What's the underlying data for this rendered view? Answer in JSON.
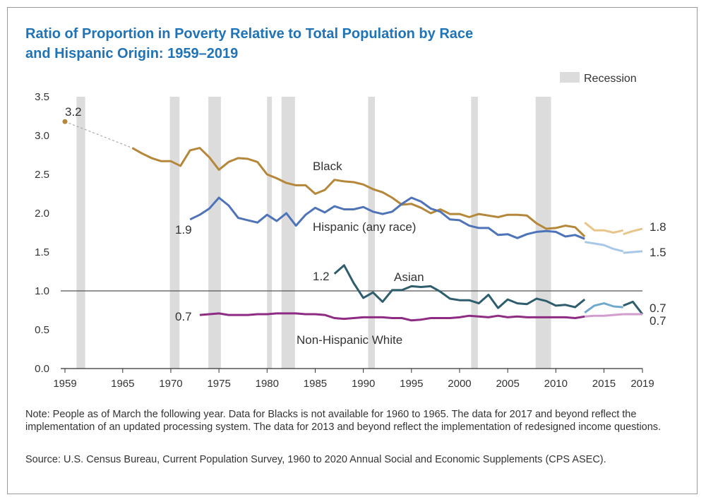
{
  "chart_data": {
    "type": "line",
    "title_line1": "Ratio of Proportion in Poverty Relative to Total Population by Race",
    "title_line2": "and Hispanic Origin: 1959–2019",
    "legend_recession": "Recession",
    "legend_placement": "top-right",
    "ylim": [
      0,
      3.5
    ],
    "xlim": [
      1959,
      2019
    ],
    "y_ticks": [
      "0.0",
      "0.5",
      "1.0",
      "1.5",
      "2.0",
      "2.5",
      "3.0",
      "3.5"
    ],
    "x_ticks": [
      "1959",
      "1965",
      "1970",
      "1975",
      "1980",
      "1985",
      "1990",
      "1995",
      "2000",
      "2005",
      "2010",
      "2015",
      "2019"
    ],
    "recessions": [
      [
        1960.2,
        1961.1
      ],
      [
        1969.9,
        1970.9
      ],
      [
        1973.9,
        1975.2
      ],
      [
        1980.0,
        1980.5
      ],
      [
        1981.5,
        1982.9
      ],
      [
        1990.5,
        1991.2
      ],
      [
        2001.2,
        2001.9
      ],
      [
        2007.9,
        2009.5
      ]
    ],
    "colors": {
      "black": "#b5873a",
      "black_light": "#e8c58b",
      "hispanic": "#4e73b8",
      "hispanic_light": "#a8c8e8",
      "asian": "#2e5e6e",
      "asian_light": "#6fa9cc",
      "white": "#8e2b82",
      "white_light": "#d29ccf",
      "title": "#1f73b7",
      "recession": "#dcdcdc"
    },
    "series": [
      {
        "name": "Black",
        "label": "Black",
        "start_label": "3.2",
        "end_label": "1.8",
        "point_1959": [
          1959,
          3.18
        ],
        "segment_1": {
          "x": [
            1966,
            1967,
            1968,
            1969,
            1970,
            1971,
            1972,
            1973,
            1974,
            1975,
            1976,
            1977,
            1978,
            1979,
            1980,
            1981,
            1982,
            1983,
            1984,
            1985,
            1986,
            1987,
            1988,
            1989,
            1990,
            1991,
            1992,
            1993,
            1994,
            1995,
            1996,
            1997,
            1998,
            1999,
            2000,
            2001,
            2002,
            2003,
            2004,
            2005,
            2006,
            2007,
            2008,
            2009,
            2010,
            2011,
            2012,
            2013
          ],
          "y": [
            2.84,
            2.77,
            2.71,
            2.67,
            2.67,
            2.61,
            2.81,
            2.84,
            2.72,
            2.56,
            2.66,
            2.71,
            2.7,
            2.66,
            2.5,
            2.45,
            2.39,
            2.36,
            2.36,
            2.25,
            2.3,
            2.43,
            2.41,
            2.4,
            2.37,
            2.31,
            2.27,
            2.2,
            2.11,
            2.12,
            2.07,
            2.0,
            2.05,
            1.99,
            1.99,
            1.95,
            1.99,
            1.97,
            1.95,
            1.98,
            1.98,
            1.97,
            1.87,
            1.8,
            1.81,
            1.84,
            1.82,
            1.7
          ]
        },
        "segment_2": {
          "x": [
            2013,
            2014,
            2015,
            2016,
            2017
          ],
          "y": [
            1.88,
            1.78,
            1.78,
            1.75,
            1.78
          ]
        },
        "segment_3": {
          "x": [
            2017,
            2018,
            2019
          ],
          "y": [
            1.73,
            1.77,
            1.8
          ]
        }
      },
      {
        "name": "Hispanic (any race)",
        "label": "Hispanic (any race)",
        "start_label": "1.9",
        "end_label": "1.5",
        "segment_1": {
          "x": [
            1972,
            1973,
            1974,
            1975,
            1976,
            1977,
            1978,
            1979,
            1980,
            1981,
            1982,
            1983,
            1984,
            1985,
            1986,
            1987,
            1988,
            1989,
            1990,
            1991,
            1992,
            1993,
            1994,
            1995,
            1996,
            1997,
            1998,
            1999,
            2000,
            2001,
            2002,
            2003,
            2004,
            2005,
            2006,
            2007,
            2008,
            2009,
            2010,
            2011,
            2012,
            2013
          ],
          "y": [
            1.92,
            1.98,
            2.06,
            2.2,
            2.1,
            1.94,
            1.91,
            1.88,
            1.98,
            1.9,
            2.0,
            1.84,
            1.98,
            2.07,
            2.01,
            2.09,
            2.05,
            2.05,
            2.08,
            2.02,
            1.99,
            2.02,
            2.12,
            2.2,
            2.15,
            2.06,
            2.02,
            1.92,
            1.91,
            1.84,
            1.81,
            1.81,
            1.72,
            1.73,
            1.68,
            1.73,
            1.76,
            1.77,
            1.76,
            1.7,
            1.72,
            1.67
          ]
        },
        "segment_2": {
          "x": [
            2013,
            2014,
            2015,
            2016,
            2017
          ],
          "y": [
            1.63,
            1.61,
            1.59,
            1.54,
            1.51
          ]
        },
        "segment_3": {
          "x": [
            2017,
            2018,
            2019
          ],
          "y": [
            1.49,
            1.5,
            1.51
          ]
        }
      },
      {
        "name": "Asian",
        "label": "Asian",
        "start_label": "1.2",
        "end_label": "0.7",
        "segment_1": {
          "x": [
            1987,
            1988,
            1989,
            1990,
            1991,
            1992,
            1993,
            1994,
            1995,
            1996,
            1997,
            1998,
            1999,
            2000,
            2001,
            2002,
            2003,
            2004,
            2005,
            2006,
            2007,
            2008,
            2009,
            2010,
            2011,
            2012,
            2013
          ],
          "y": [
            1.22,
            1.33,
            1.1,
            0.91,
            0.98,
            0.86,
            1.01,
            1.01,
            1.06,
            1.05,
            1.06,
            0.99,
            0.9,
            0.88,
            0.88,
            0.84,
            0.95,
            0.78,
            0.89,
            0.84,
            0.83,
            0.9,
            0.87,
            0.81,
            0.82,
            0.79,
            0.89
          ]
        },
        "segment_2": {
          "x": [
            2013,
            2014,
            2015,
            2016,
            2017
          ],
          "y": [
            0.72,
            0.81,
            0.84,
            0.8,
            0.79
          ]
        },
        "segment_3": {
          "x": [
            2017,
            2018,
            2019
          ],
          "y": [
            0.81,
            0.86,
            0.7
          ]
        }
      },
      {
        "name": "Non-Hispanic White",
        "label": "Non-Hispanic White",
        "start_label": "0.7",
        "end_label": "0.7",
        "segment_1": {
          "x": [
            1973,
            1974,
            1975,
            1976,
            1977,
            1978,
            1979,
            1980,
            1981,
            1982,
            1983,
            1984,
            1985,
            1986,
            1987,
            1988,
            1989,
            1990,
            1991,
            1992,
            1993,
            1994,
            1995,
            1996,
            1997,
            1998,
            1999,
            2000,
            2001,
            2002,
            2003,
            2004,
            2005,
            2006,
            2007,
            2008,
            2009,
            2010,
            2011,
            2012,
            2013
          ],
          "y": [
            0.69,
            0.7,
            0.71,
            0.69,
            0.69,
            0.69,
            0.7,
            0.7,
            0.71,
            0.71,
            0.71,
            0.7,
            0.7,
            0.69,
            0.65,
            0.64,
            0.65,
            0.66,
            0.66,
            0.66,
            0.65,
            0.65,
            0.62,
            0.63,
            0.65,
            0.65,
            0.65,
            0.66,
            0.68,
            0.67,
            0.66,
            0.68,
            0.66,
            0.67,
            0.66,
            0.66,
            0.66,
            0.66,
            0.66,
            0.65,
            0.67
          ]
        },
        "segment_2": {
          "x": [
            2013,
            2014,
            2015,
            2016,
            2017
          ],
          "y": [
            0.67,
            0.68,
            0.68,
            0.69,
            0.7
          ]
        },
        "segment_3": {
          "x": [
            2017,
            2018,
            2019
          ],
          "y": [
            0.7,
            0.7,
            0.7
          ]
        }
      }
    ]
  },
  "notes": {
    "note": "Note: People as of March the following year. Data for Blacks is not available for 1960 to 1965. The data for 2017 and beyond reflect the implementation of an updated processing system. The data for 2013 and beyond reflect the implementation of redesigned income questions.",
    "source": "Source: U.S. Census Bureau, Current Population Survey, 1960 to 2020 Annual Social and Economic Supplements (CPS ASEC)."
  }
}
